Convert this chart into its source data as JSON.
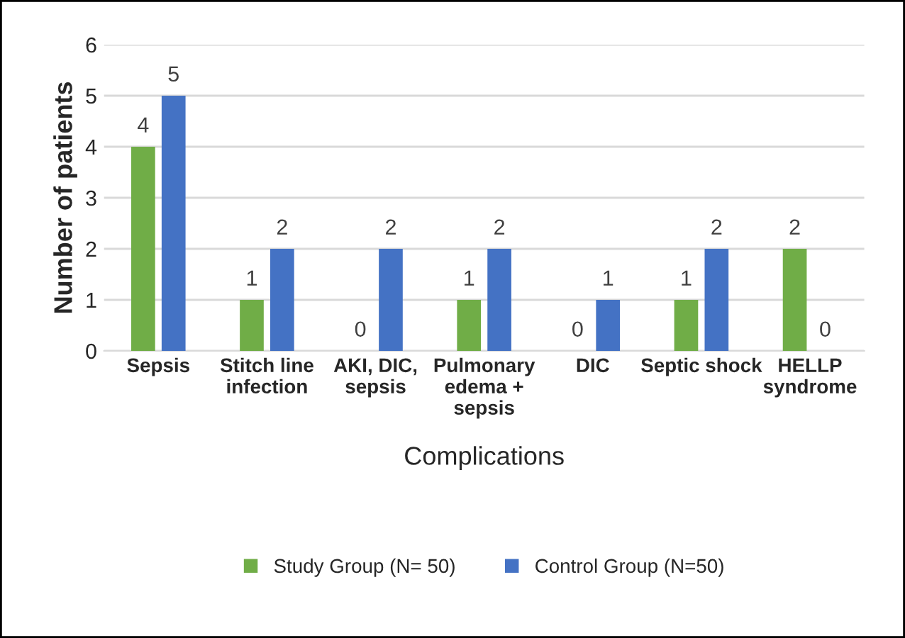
{
  "chart_data": {
    "type": "bar",
    "xlabel": "Complications",
    "ylabel": "Number of patients",
    "categories": [
      "Sepsis",
      "Stitch line\ninfection",
      "AKI, DIC,\nsepsis",
      "Pulmonary\nedema +\nsepsis",
      "DIC",
      "Septic shock",
      "HELLP\nsyndrome"
    ],
    "series": [
      {
        "name": "Study Group (N= 50)",
        "color": "#70ad47",
        "values": [
          4,
          1,
          0,
          1,
          0,
          1,
          2
        ]
      },
      {
        "name": "Control Group (N=50)",
        "color": "#4472c4",
        "values": [
          5,
          2,
          2,
          2,
          1,
          2,
          0
        ]
      }
    ],
    "ylim": [
      0,
      6
    ],
    "yticks": [
      0,
      1,
      2,
      3,
      4,
      5,
      6
    ],
    "grid": "y",
    "legend": "bottom",
    "data_labels": true
  }
}
